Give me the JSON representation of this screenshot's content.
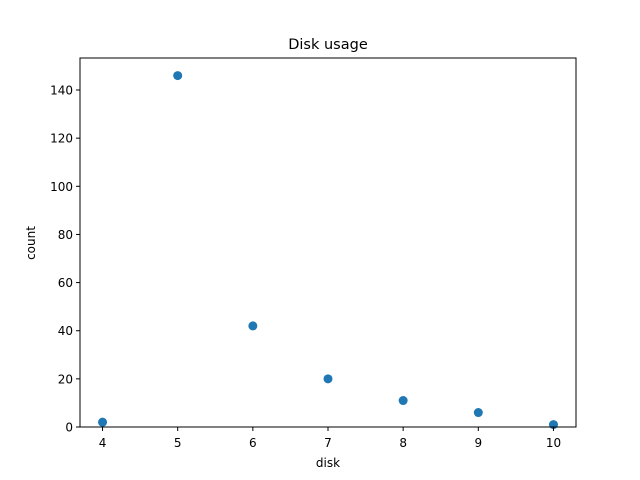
{
  "chart_data": {
    "type": "scatter",
    "title": "Disk usage",
    "xlabel": "disk",
    "ylabel": "count",
    "x": [
      4,
      5,
      6,
      7,
      8,
      9,
      10
    ],
    "y": [
      2,
      146,
      42,
      20,
      11,
      6,
      1
    ],
    "xlim": [
      3.7,
      10.3
    ],
    "ylim": [
      0,
      153.3
    ],
    "xticks": [
      "4",
      "5",
      "6",
      "7",
      "8",
      "9",
      "10"
    ],
    "yticks": [
      "0",
      "20",
      "40",
      "60",
      "80",
      "100",
      "120",
      "140"
    ],
    "grid": false,
    "legend": "none",
    "marker_color": "#1f77b4"
  }
}
